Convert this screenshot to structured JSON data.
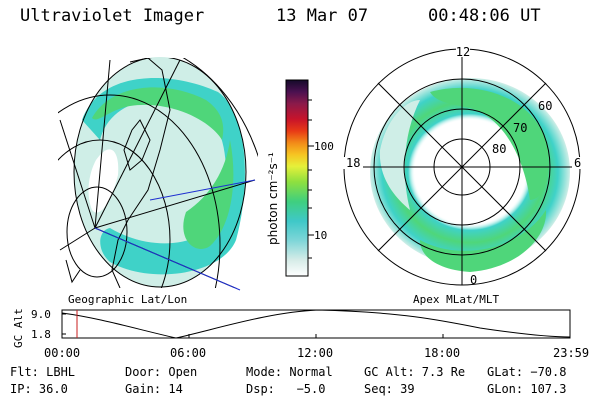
{
  "header": {
    "title": "Ultraviolet Imager",
    "date": "13 Mar 07",
    "time": "00:48:06 UT"
  },
  "left_panel": {
    "caption": "Geographic Lat/Lon"
  },
  "right_panel": {
    "caption": "Apex MLat/MLT",
    "mlt_labels": {
      "top": "12",
      "left": "18",
      "right": "6",
      "bottom": "0"
    },
    "lat_labels": [
      "60",
      "70",
      "80"
    ]
  },
  "colorbar": {
    "label": "photon cm⁻²s⁻¹",
    "ticks": [
      "100",
      "10"
    ]
  },
  "altitude_plot": {
    "ylabel": "GC Alt",
    "yticks": [
      "9.0",
      "1.8"
    ],
    "xticks": [
      "00:00",
      "06:00",
      "12:00",
      "18:00",
      "23:59"
    ]
  },
  "status": [
    {
      "key": "filter",
      "text": "Flt: LBHL"
    },
    {
      "key": "door",
      "text": "Door: Open"
    },
    {
      "key": "mode",
      "text": "Mode: Normal"
    },
    {
      "key": "gc_alt",
      "text": "GC Alt: 7.3 Re"
    },
    {
      "key": "glat",
      "text": "GLat: −70.8"
    },
    {
      "key": "ip",
      "text": "IP: 36.0"
    },
    {
      "key": "gain",
      "text": "Gain: 14"
    },
    {
      "key": "dsp",
      "text": "Dsp:   −5.0"
    },
    {
      "key": "seq",
      "text": "Seq: 39"
    },
    {
      "key": "glon",
      "text": "GLon: 107.3"
    }
  ],
  "colors": {
    "aurora_green": "#4fd67a",
    "aurora_cyan": "#3fd2c8",
    "aurora_pale": "#cfeee7",
    "orbit_marker": "#c81e1e",
    "meridian_blue": "#1f2fd0"
  }
}
